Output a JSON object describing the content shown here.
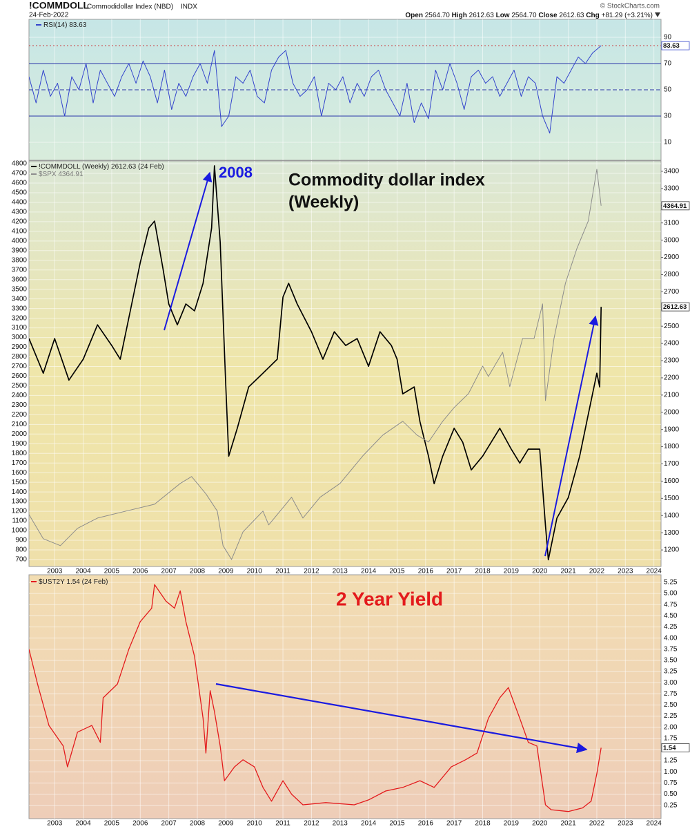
{
  "header": {
    "symbol": "!COMMDOLL",
    "name": "Commodidollar Index (NBD)",
    "exchange": "INDX",
    "date": "24-Feb-2022",
    "source": "© StockCharts.com",
    "quote": [
      {
        "label": "Open",
        "value": "2564.70"
      },
      {
        "label": "High",
        "value": "2612.63"
      },
      {
        "label": "Low",
        "value": "2564.70"
      },
      {
        "label": "Close",
        "value": "2612.63"
      },
      {
        "label": "Chg",
        "value": "+81.29 (+3.21%)"
      }
    ]
  },
  "chart_data": [
    {
      "type": "line",
      "grid": true,
      "xtick_labels": false,
      "ytick_side": "right",
      "xlim": [
        2002.1,
        2024.25
      ],
      "xticks": [
        2003,
        2004,
        2005,
        2006,
        2007,
        2008,
        2009,
        2010,
        2011,
        2012,
        2013,
        2014,
        2015,
        2016,
        2017,
        2018,
        2019,
        2020,
        2021,
        2022,
        2023,
        2024
      ],
      "ylim": [
        -3.7,
        103.7
      ],
      "yticks": [
        10,
        30,
        50,
        70,
        90
      ],
      "bands": [
        30,
        50,
        70
      ],
      "series": [
        {
          "name": "RSI(14)",
          "color": "#3344cc",
          "flag": true,
          "current_line": true,
          "x": [
            2002.1,
            2002.35,
            2002.6,
            2002.85,
            2003.1,
            2003.35,
            2003.6,
            2003.85,
            2004.1,
            2004.35,
            2004.6,
            2004.85,
            2005.1,
            2005.35,
            2005.6,
            2005.85,
            2006.1,
            2006.35,
            2006.6,
            2006.85,
            2007.1,
            2007.35,
            2007.6,
            2007.85,
            2008.1,
            2008.35,
            2008.6,
            2008.85,
            2009.1,
            2009.35,
            2009.6,
            2009.85,
            2010.1,
            2010.35,
            2010.6,
            2010.85,
            2011.1,
            2011.35,
            2011.6,
            2011.85,
            2012.1,
            2012.35,
            2012.6,
            2012.85,
            2013.1,
            2013.35,
            2013.6,
            2013.85,
            2014.1,
            2014.35,
            2014.6,
            2014.85,
            2015.1,
            2015.35,
            2015.6,
            2015.85,
            2016.1,
            2016.35,
            2016.6,
            2016.85,
            2017.1,
            2017.35,
            2017.6,
            2017.85,
            2018.1,
            2018.35,
            2018.6,
            2018.85,
            2019.1,
            2019.35,
            2019.6,
            2019.85,
            2020.1,
            2020.35,
            2020.6,
            2020.85,
            2021.1,
            2021.35,
            2021.6,
            2021.85,
            2022.15
          ],
          "values": [
            60,
            40,
            65,
            45,
            55,
            30,
            60,
            50,
            70,
            40,
            65,
            55,
            45,
            60,
            70,
            55,
            72,
            60,
            40,
            65,
            35,
            55,
            45,
            60,
            70,
            55,
            80,
            22,
            30,
            60,
            55,
            65,
            45,
            40,
            65,
            75,
            80,
            55,
            45,
            50,
            60,
            30,
            55,
            50,
            60,
            40,
            55,
            45,
            60,
            65,
            50,
            40,
            30,
            55,
            25,
            40,
            28,
            65,
            50,
            70,
            55,
            35,
            60,
            65,
            55,
            60,
            45,
            55,
            65,
            45,
            60,
            55,
            30,
            17,
            60,
            55,
            65,
            75,
            70,
            78,
            83.63
          ]
        }
      ]
    },
    {
      "type": "line",
      "grid": true,
      "xtick_labels": true,
      "ytick_side": "left",
      "annotations": [
        "2008",
        "Commodity dollar index",
        "(Weekly)"
      ],
      "xlim": [
        2002.1,
        2024.25
      ],
      "xticks": [
        2003,
        2004,
        2005,
        2006,
        2007,
        2008,
        2009,
        2010,
        2011,
        2012,
        2013,
        2014,
        2015,
        2016,
        2017,
        2018,
        2019,
        2020,
        2021,
        2022,
        2023,
        2024
      ],
      "ylim": [
        628,
        4829
      ],
      "yticks": [
        700,
        800,
        900,
        1000,
        1100,
        1200,
        1300,
        1400,
        1500,
        1600,
        1700,
        1800,
        1900,
        2000,
        2100,
        2200,
        2300,
        2400,
        2500,
        2600,
        2700,
        2800,
        2900,
        3000,
        3100,
        3200,
        3300,
        3400,
        3500,
        3600,
        3700,
        3800,
        3900,
        4000,
        4100,
        4200,
        4300,
        4400,
        4500,
        4600,
        4700,
        4800
      ],
      "y2lim": [
        1104,
        3460
      ],
      "y2ticks": [
        1200,
        1300,
        1400,
        1500,
        1600,
        1700,
        1800,
        1900,
        2000,
        2100,
        2200,
        2300,
        2400,
        2500,
        2600,
        2700,
        2800,
        2900,
        3000,
        3100,
        3200,
        3300,
        3400
      ],
      "series": [
        {
          "name": "!COMMDOLL (Weekly)",
          "legend_date": "(24 Feb)",
          "color": "#000000",
          "axis": "y2",
          "flag": true,
          "width": 1.7,
          "x": [
            2002.1,
            2002.6,
            2003.0,
            2003.5,
            2004.0,
            2004.5,
            2005.0,
            2005.3,
            2005.7,
            2006.0,
            2006.3,
            2006.5,
            2006.8,
            2007.0,
            2007.3,
            2007.6,
            2007.9,
            2008.2,
            2008.5,
            2008.6,
            2008.8,
            2009.0,
            2009.1,
            2009.4,
            2009.8,
            2010.3,
            2010.8,
            2011.0,
            2011.2,
            2011.5,
            2012.0,
            2012.4,
            2012.8,
            2013.2,
            2013.6,
            2014.0,
            2014.4,
            2014.8,
            2015.0,
            2015.2,
            2015.6,
            2015.8,
            2016.1,
            2016.3,
            2016.6,
            2017.0,
            2017.3,
            2017.6,
            2018.0,
            2018.3,
            2018.6,
            2019.0,
            2019.3,
            2019.6,
            2020.0,
            2020.2,
            2020.3,
            2020.6,
            2021.0,
            2021.4,
            2021.7,
            2022.0,
            2022.1,
            2022.15
          ],
          "values": [
            2428,
            2227,
            2428,
            2187,
            2308,
            2508,
            2388,
            2308,
            2629,
            2870,
            3071,
            3111,
            2830,
            2629,
            2508,
            2629,
            2589,
            2749,
            3071,
            3432,
            2990,
            2147,
            1745,
            1907,
            2147,
            2227,
            2308,
            2669,
            2749,
            2629,
            2468,
            2308,
            2468,
            2388,
            2428,
            2267,
            2468,
            2388,
            2308,
            2107,
            2147,
            1946,
            1745,
            1585,
            1745,
            1907,
            1826,
            1665,
            1745,
            1826,
            1907,
            1786,
            1705,
            1786,
            1786,
            1344,
            1143,
            1385,
            1504,
            1745,
            1986,
            2227,
            2147,
            2612.63
          ]
        },
        {
          "name": "$SPX",
          "color": "#8c8c8c",
          "flag": true,
          "width": 1,
          "x": [
            2002.1,
            2002.6,
            2003.2,
            2003.8,
            2004.5,
            2005.5,
            2006.5,
            2007.4,
            2007.8,
            2008.3,
            2008.7,
            2008.9,
            2009.2,
            2009.6,
            2010.3,
            2010.5,
            2011.3,
            2011.7,
            2012.3,
            2013.0,
            2013.8,
            2014.5,
            2015.2,
            2015.7,
            2016.1,
            2016.6,
            2017.0,
            2017.5,
            2018.0,
            2018.2,
            2018.7,
            2018.95,
            2019.4,
            2019.8,
            2020.1,
            2020.2,
            2020.5,
            2020.9,
            2021.3,
            2021.7,
            2022.0,
            2022.15
          ],
          "values": [
            1166,
            916,
            844,
            1023,
            1130,
            1202,
            1273,
            1488,
            1560,
            1381,
            1202,
            844,
            701,
            987,
            1202,
            1059,
            1345,
            1130,
            1345,
            1488,
            1774,
            1989,
            2132,
            1989,
            1917,
            2132,
            2275,
            2418,
            2704,
            2597,
            2847,
            2490,
            2990,
            2990,
            3348,
            2346,
            2990,
            3563,
            3920,
            4206,
            4743,
            4364.91
          ]
        }
      ]
    },
    {
      "type": "line",
      "grid": true,
      "xtick_labels": true,
      "ytick_side": "right",
      "annotations": [
        "2 Year Yield"
      ],
      "xlim": [
        2002.1,
        2024.25
      ],
      "xticks": [
        2003,
        2004,
        2005,
        2006,
        2007,
        2008,
        2009,
        2010,
        2011,
        2012,
        2013,
        2014,
        2015,
        2016,
        2017,
        2018,
        2019,
        2020,
        2021,
        2022,
        2023,
        2024
      ],
      "ylim": [
        -0.05,
        5.42
      ],
      "yticks": [
        0.25,
        {
          "value": 0.5,
          "label": "0.50"
        },
        0.75,
        {
          "value": 1,
          "label": "1.00"
        },
        1.25,
        {
          "value": 1.5,
          "label": "1.50"
        },
        1.75,
        {
          "value": 2,
          "label": "2.00"
        },
        2.25,
        {
          "value": 2.5,
          "label": "2.50"
        },
        2.75,
        {
          "value": 3,
          "label": "3.00"
        },
        3.25,
        {
          "value": 3.5,
          "label": "3.50"
        },
        3.75,
        {
          "value": 4,
          "label": "4.00"
        },
        4.25,
        {
          "value": 4.5,
          "label": "4.50"
        },
        4.75,
        {
          "value": 5,
          "label": "5.00"
        },
        5.25
      ],
      "series": [
        {
          "name": "$UST2Y",
          "legend_date": "(24 Feb)",
          "color": "#e31a1c",
          "flag": true,
          "width": 1.3,
          "x": [
            2002.1,
            2002.4,
            2002.8,
            2003.3,
            2003.45,
            2003.8,
            2004.3,
            2004.6,
            2004.7,
            2005.2,
            2005.6,
            2006.0,
            2006.4,
            2006.5,
            2006.9,
            2007.2,
            2007.4,
            2007.6,
            2007.9,
            2008.2,
            2008.3,
            2008.45,
            2008.6,
            2008.8,
            2008.95,
            2009.3,
            2009.6,
            2010.0,
            2010.3,
            2010.6,
            2011.0,
            2011.3,
            2011.7,
            2012.5,
            2013.5,
            2014.0,
            2014.6,
            2015.2,
            2015.8,
            2016.3,
            2016.9,
            2017.4,
            2017.8,
            2018.2,
            2018.6,
            2018.9,
            2019.3,
            2019.6,
            2019.9,
            2020.2,
            2020.4,
            2021.0,
            2021.5,
            2021.8,
            2022.0,
            2022.15
          ],
          "values": [
            3.75,
            2.97,
            2.04,
            1.58,
            1.11,
            1.89,
            2.04,
            1.66,
            2.66,
            2.97,
            3.75,
            4.37,
            4.67,
            5.2,
            4.83,
            4.67,
            5.06,
            4.37,
            3.59,
            2.2,
            1.42,
            2.82,
            2.35,
            1.58,
            0.8,
            1.11,
            1.27,
            1.11,
            0.65,
            0.34,
            0.8,
            0.5,
            0.26,
            0.31,
            0.26,
            0.37,
            0.57,
            0.65,
            0.8,
            0.65,
            1.11,
            1.27,
            1.42,
            2.2,
            2.66,
            2.89,
            2.2,
            1.66,
            1.58,
            0.26,
            0.15,
            0.11,
            0.19,
            0.34,
            0.96,
            1.54
          ]
        }
      ]
    }
  ]
}
